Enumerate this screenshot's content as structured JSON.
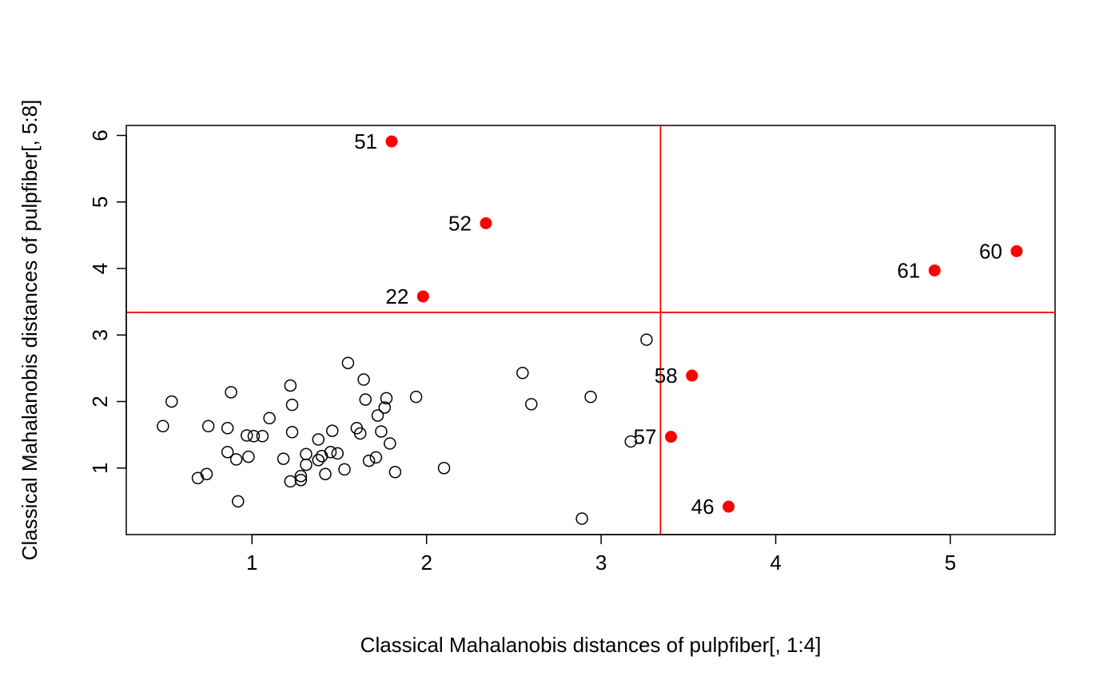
{
  "chart_data": {
    "type": "scatter",
    "title": "",
    "xlabel": "Classical Mahalanobis distances of pulpfiber[, 1:4]",
    "ylabel": "Classical Mahalanobis distances of pulpfiber[, 5:8]",
    "xlim": [
      0.28,
      5.6
    ],
    "ylim": [
      0.0,
      6.15
    ],
    "x_ticks": [
      1,
      2,
      3,
      4,
      5
    ],
    "y_ticks": [
      1,
      2,
      3,
      4,
      5,
      6
    ],
    "grid": false,
    "cutoff_x": 3.34,
    "cutoff_y": 3.34,
    "cutoff_color": "#ff0000",
    "normal_color": "#000000",
    "outlier_color": "#ff0000",
    "normal_points": [
      {
        "x": 0.49,
        "y": 1.63
      },
      {
        "x": 0.54,
        "y": 2.0
      },
      {
        "x": 0.69,
        "y": 0.85
      },
      {
        "x": 0.74,
        "y": 0.91
      },
      {
        "x": 0.75,
        "y": 1.63
      },
      {
        "x": 0.86,
        "y": 1.24
      },
      {
        "x": 0.86,
        "y": 1.6
      },
      {
        "x": 0.88,
        "y": 2.14
      },
      {
        "x": 0.91,
        "y": 1.13
      },
      {
        "x": 0.92,
        "y": 0.5
      },
      {
        "x": 0.97,
        "y": 1.49
      },
      {
        "x": 0.98,
        "y": 1.17
      },
      {
        "x": 1.01,
        "y": 1.48
      },
      {
        "x": 1.06,
        "y": 1.48
      },
      {
        "x": 1.1,
        "y": 1.75
      },
      {
        "x": 1.18,
        "y": 1.14
      },
      {
        "x": 1.22,
        "y": 0.8
      },
      {
        "x": 1.22,
        "y": 2.24
      },
      {
        "x": 1.23,
        "y": 1.54
      },
      {
        "x": 1.23,
        "y": 1.95
      },
      {
        "x": 1.28,
        "y": 0.88
      },
      {
        "x": 1.28,
        "y": 0.82
      },
      {
        "x": 1.31,
        "y": 1.21
      },
      {
        "x": 1.31,
        "y": 1.05
      },
      {
        "x": 1.38,
        "y": 1.12
      },
      {
        "x": 1.38,
        "y": 1.43
      },
      {
        "x": 1.4,
        "y": 1.18
      },
      {
        "x": 1.42,
        "y": 0.91
      },
      {
        "x": 1.45,
        "y": 1.24
      },
      {
        "x": 1.46,
        "y": 1.56
      },
      {
        "x": 1.49,
        "y": 1.22
      },
      {
        "x": 1.53,
        "y": 0.98
      },
      {
        "x": 1.55,
        "y": 2.58
      },
      {
        "x": 1.6,
        "y": 1.6
      },
      {
        "x": 1.62,
        "y": 1.52
      },
      {
        "x": 1.64,
        "y": 2.33
      },
      {
        "x": 1.65,
        "y": 2.03
      },
      {
        "x": 1.67,
        "y": 1.11
      },
      {
        "x": 1.71,
        "y": 1.16
      },
      {
        "x": 1.72,
        "y": 1.79
      },
      {
        "x": 1.74,
        "y": 1.55
      },
      {
        "x": 1.76,
        "y": 1.91
      },
      {
        "x": 1.77,
        "y": 2.05
      },
      {
        "x": 1.79,
        "y": 1.37
      },
      {
        "x": 1.82,
        "y": 0.94
      },
      {
        "x": 1.94,
        "y": 2.07
      },
      {
        "x": 2.1,
        "y": 1.0
      },
      {
        "x": 2.55,
        "y": 2.43
      },
      {
        "x": 2.6,
        "y": 1.96
      },
      {
        "x": 2.89,
        "y": 0.24
      },
      {
        "x": 2.94,
        "y": 2.07
      },
      {
        "x": 3.17,
        "y": 1.4
      },
      {
        "x": 3.26,
        "y": 2.93
      }
    ],
    "outlier_points": [
      {
        "label": "51",
        "x": 1.8,
        "y": 5.91
      },
      {
        "label": "52",
        "x": 2.34,
        "y": 4.68
      },
      {
        "label": "22",
        "x": 1.98,
        "y": 3.58
      },
      {
        "label": "61",
        "x": 4.91,
        "y": 3.97
      },
      {
        "label": "60",
        "x": 5.38,
        "y": 4.26
      },
      {
        "label": "58",
        "x": 3.52,
        "y": 2.39
      },
      {
        "label": "57",
        "x": 3.4,
        "y": 1.47
      },
      {
        "label": "46",
        "x": 3.73,
        "y": 0.42
      }
    ]
  }
}
